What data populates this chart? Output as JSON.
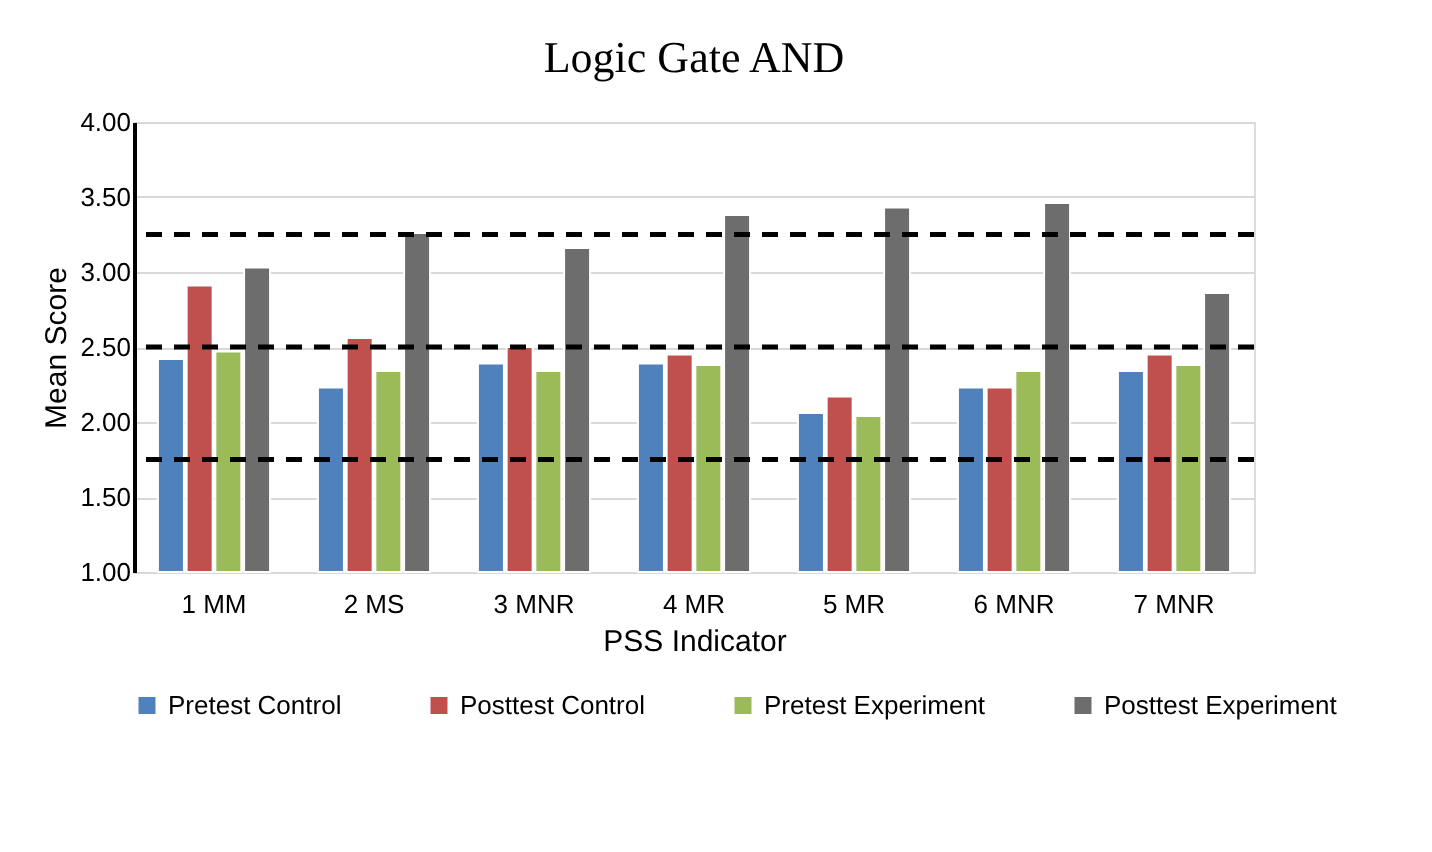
{
  "chart_data": {
    "type": "bar",
    "title": "Logic Gate AND",
    "xlabel": "PSS Indicator",
    "ylabel": "Mean Score",
    "categories": [
      "1 MM",
      "2 MS",
      "3 MNR",
      "4 MR",
      "5 MR",
      "6 MNR",
      "7 MNR"
    ],
    "series": [
      {
        "name": "Pretest Control",
        "color": "#4f81bd",
        "values": [
          2.42,
          2.23,
          2.39,
          2.39,
          2.06,
          2.23,
          2.34
        ]
      },
      {
        "name": "Posttest Control",
        "color": "#c0504d",
        "values": [
          2.91,
          2.56,
          2.5,
          2.45,
          2.17,
          2.23,
          2.45
        ]
      },
      {
        "name": "Pretest Experiment",
        "color": "#9bbb59",
        "values": [
          2.47,
          2.34,
          2.34,
          2.38,
          2.04,
          2.34,
          2.38
        ]
      },
      {
        "name": "Posttest Experiment",
        "color": "#6d6d6d",
        "values": [
          3.03,
          3.26,
          3.16,
          3.38,
          3.43,
          3.46,
          2.86
        ]
      }
    ],
    "ylim": [
      1.0,
      4.0
    ],
    "yticks": [
      {
        "value": 1.0,
        "label": "1.00"
      },
      {
        "value": 1.5,
        "label": "1.50"
      },
      {
        "value": 2.0,
        "label": "2.00"
      },
      {
        "value": 2.5,
        "label": "2.50"
      },
      {
        "value": 3.0,
        "label": "3.00"
      },
      {
        "value": 3.5,
        "label": "3.50"
      },
      {
        "value": 4.0,
        "label": "4.00"
      }
    ],
    "ref_lines": [
      {
        "axis": "y",
        "value": 3.25,
        "color": "#000000",
        "line_style": "dashed"
      },
      {
        "axis": "y",
        "value": 2.5,
        "color": "#000000",
        "line_style": "dashed"
      },
      {
        "axis": "y",
        "value": 1.75,
        "color": "#000000",
        "line_style": "dashed"
      }
    ],
    "grid": "y",
    "legend": "bottom"
  }
}
